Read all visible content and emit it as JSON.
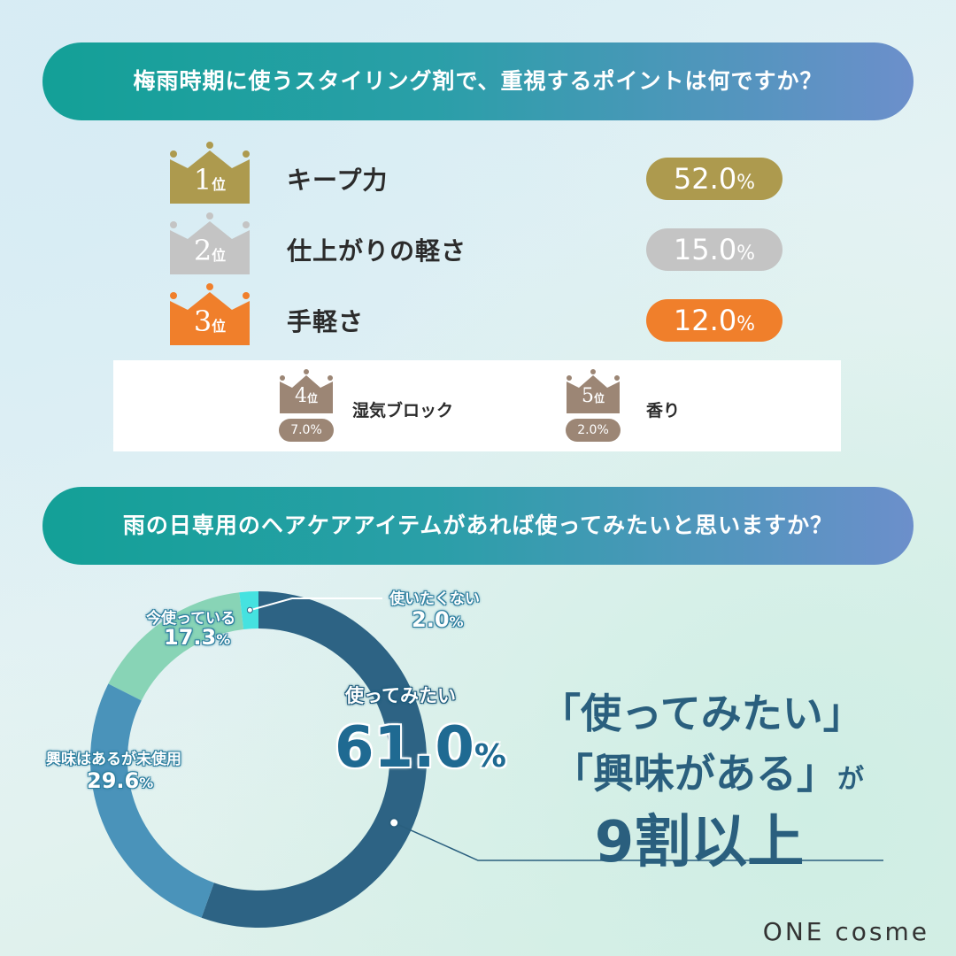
{
  "q1": {
    "title": "梅雨時期に使うスタイリング剤で、重視するポイントは何ですか？"
  },
  "q2": {
    "title": "雨の日専用のヘアケアアイテムがあれば使ってみたいと思いますか？"
  },
  "rank_unit": "位",
  "pct_sign": "%",
  "colors": {
    "gold": "#ad9a4e",
    "silver": "#c4c4c4",
    "bronze": "#f07f2b",
    "minor": "#9c8675",
    "dark": "#2d6384",
    "mid": "#4a93ba",
    "mint": "#88d4b6",
    "cyan": "#45e2e0"
  },
  "ranking": [
    {
      "rank": "1",
      "label": "キープ力",
      "value_text": "52.0",
      "color": "#ad9a4e"
    },
    {
      "rank": "2",
      "label": "仕上がりの軽さ",
      "value_text": "15.0",
      "color": "#c4c4c4"
    },
    {
      "rank": "3",
      "label": "手軽さ",
      "value_text": "12.0",
      "color": "#f07f2b"
    }
  ],
  "minor_ranking": [
    {
      "rank": "4",
      "label": "湿気ブロック",
      "value_text": "7.0%"
    },
    {
      "rank": "5",
      "label": "香り",
      "value_text": "2.0%"
    }
  ],
  "chart_data": [
    {
      "type": "bar",
      "title": "梅雨時期に使うスタイリング剤で、重視するポイントは何ですか？",
      "categories": [
        "キープ力",
        "仕上がりの軽さ",
        "手軽さ",
        "湿気ブロック",
        "香り"
      ],
      "values": [
        52.0,
        15.0,
        12.0,
        7.0,
        2.0
      ]
    },
    {
      "type": "pie",
      "title": "雨の日専用のヘアケアアイテムがあれば使ってみたいと思いますか？",
      "categories": [
        "使ってみたい",
        "興味はあるが未使用",
        "今使っている",
        "使いたくない"
      ],
      "values": [
        61.0,
        29.6,
        17.3,
        2.0
      ],
      "colors": [
        "#2d6384",
        "#4a93ba",
        "#88d4b6",
        "#45e2e0"
      ]
    }
  ],
  "donut_labels": {
    "main": {
      "name": "使ってみたい",
      "value": "61.0"
    },
    "interested": {
      "name": "興味はあるが未使用",
      "value": "29.6"
    },
    "using": {
      "name": "今使っている",
      "value": "17.3"
    },
    "not": {
      "name": "使いたくない",
      "value": "2.0"
    }
  },
  "callout": {
    "line1": "「使ってみたい」",
    "line2": "「興味がある」",
    "line2_suffix": "が",
    "line3": "9割以上"
  },
  "brand": "ONE cosme"
}
